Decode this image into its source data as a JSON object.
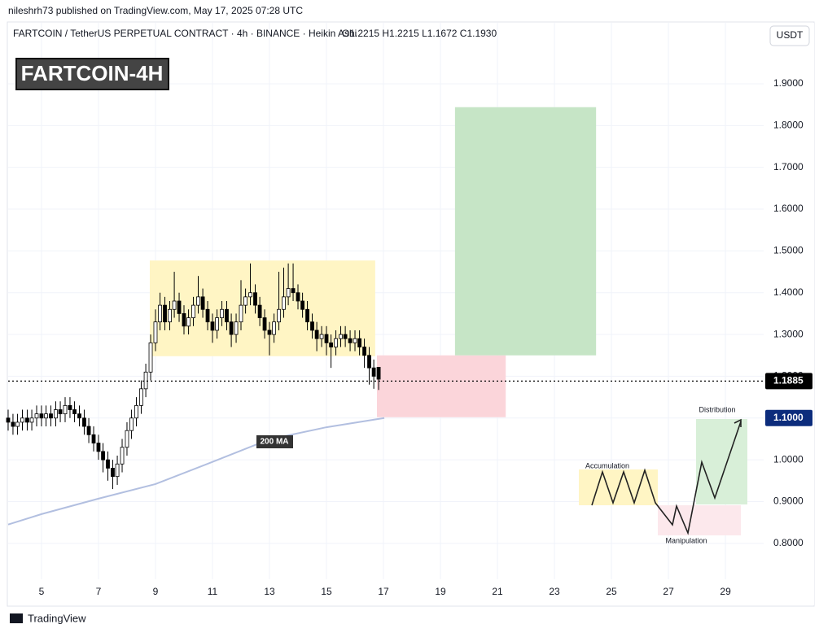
{
  "header": {
    "publisher": "nileshrh73 published on TradingView.com, May 17, 2025 07:28 UTC",
    "symbol": "FARTCOIN / TetherUS PERPETUAL CONTRACT · 4h · BINANCE · Heikin Ashi",
    "ohlc": "O1.2215  H1.2215  L1.1672  C1.1930",
    "currency": "USDT"
  },
  "footer": {
    "brand": "TradingView"
  },
  "schematic": {
    "labels": [
      "Accumulation",
      "Manipulation",
      "Distribution"
    ]
  },
  "chart_data": {
    "type": "candlestick",
    "title": "FARTCOIN-4H",
    "x": [
      3.83,
      4.0,
      4.16,
      4.33,
      4.5,
      4.66,
      4.83,
      5.0,
      5.16,
      5.33,
      5.5,
      5.66,
      5.83,
      6.0,
      6.16,
      6.33,
      6.5,
      6.66,
      6.83,
      7.0,
      7.16,
      7.33,
      7.5,
      7.66,
      7.83,
      8.0,
      8.16,
      8.33,
      8.5,
      8.66,
      8.83,
      9.0,
      9.16,
      9.33,
      9.5,
      9.66,
      9.83,
      10.0,
      10.16,
      10.33,
      10.5,
      10.66,
      10.83,
      11.0,
      11.16,
      11.33,
      11.5,
      11.66,
      11.83,
      12.0,
      12.16,
      12.33,
      12.5,
      12.66,
      12.83,
      13.0,
      13.16,
      13.33,
      13.5,
      13.66,
      13.83,
      14.0,
      14.16,
      14.33,
      14.5,
      14.66,
      14.83,
      15.0,
      15.16,
      15.33,
      15.5,
      15.66,
      15.83,
      16.0,
      16.16,
      16.33,
      16.5,
      16.66,
      16.83
    ],
    "open": [
      1.1,
      1.09,
      1.08,
      1.09,
      1.1,
      1.09,
      1.1,
      1.11,
      1.1,
      1.11,
      1.1,
      1.12,
      1.11,
      1.13,
      1.12,
      1.11,
      1.1,
      1.08,
      1.06,
      1.04,
      1.02,
      1.0,
      0.98,
      0.96,
      0.99,
      1.03,
      1.07,
      1.1,
      1.13,
      1.17,
      1.21,
      1.28,
      1.33,
      1.37,
      1.33,
      1.36,
      1.38,
      1.35,
      1.32,
      1.34,
      1.37,
      1.39,
      1.36,
      1.33,
      1.31,
      1.34,
      1.36,
      1.33,
      1.3,
      1.33,
      1.37,
      1.39,
      1.4,
      1.37,
      1.34,
      1.31,
      1.3,
      1.33,
      1.36,
      1.39,
      1.41,
      1.4,
      1.38,
      1.36,
      1.33,
      1.31,
      1.29,
      1.3,
      1.28,
      1.27,
      1.29,
      1.3,
      1.29,
      1.28,
      1.29,
      1.27,
      1.25,
      1.22,
      1.2215
    ],
    "high": [
      1.12,
      1.11,
      1.11,
      1.12,
      1.12,
      1.12,
      1.13,
      1.13,
      1.13,
      1.13,
      1.14,
      1.14,
      1.15,
      1.15,
      1.14,
      1.13,
      1.12,
      1.1,
      1.08,
      1.06,
      1.04,
      1.02,
      1.0,
      1.01,
      1.05,
      1.09,
      1.12,
      1.15,
      1.19,
      1.23,
      1.3,
      1.36,
      1.4,
      1.39,
      1.38,
      1.45,
      1.4,
      1.37,
      1.36,
      1.39,
      1.44,
      1.41,
      1.38,
      1.35,
      1.36,
      1.38,
      1.38,
      1.35,
      1.35,
      1.43,
      1.41,
      1.47,
      1.42,
      1.39,
      1.36,
      1.33,
      1.35,
      1.45,
      1.46,
      1.47,
      1.47,
      1.42,
      1.4,
      1.38,
      1.35,
      1.33,
      1.32,
      1.32,
      1.3,
      1.31,
      1.32,
      1.32,
      1.31,
      1.31,
      1.31,
      1.29,
      1.27,
      1.24,
      1.2215
    ],
    "low": [
      1.07,
      1.06,
      1.06,
      1.07,
      1.07,
      1.07,
      1.08,
      1.08,
      1.08,
      1.08,
      1.08,
      1.09,
      1.09,
      1.1,
      1.09,
      1.08,
      1.06,
      1.04,
      1.02,
      1.0,
      0.97,
      0.95,
      0.93,
      0.94,
      0.97,
      1.01,
      1.05,
      1.08,
      1.11,
      1.15,
      1.19,
      1.26,
      1.31,
      1.31,
      1.31,
      1.34,
      1.33,
      1.3,
      1.3,
      1.32,
      1.35,
      1.34,
      1.31,
      1.28,
      1.29,
      1.32,
      1.31,
      1.27,
      1.28,
      1.31,
      1.35,
      1.37,
      1.35,
      1.32,
      1.29,
      1.25,
      1.28,
      1.31,
      1.34,
      1.37,
      1.38,
      1.36,
      1.34,
      1.31,
      1.29,
      1.26,
      1.27,
      1.25,
      1.22,
      1.25,
      1.27,
      1.27,
      1.26,
      1.26,
      1.25,
      1.22,
      1.18,
      1.17,
      1.1672
    ],
    "close": [
      1.09,
      1.08,
      1.09,
      1.1,
      1.09,
      1.1,
      1.11,
      1.1,
      1.11,
      1.1,
      1.12,
      1.11,
      1.13,
      1.12,
      1.11,
      1.1,
      1.08,
      1.06,
      1.04,
      1.02,
      1.0,
      0.98,
      0.96,
      0.99,
      1.03,
      1.07,
      1.1,
      1.13,
      1.17,
      1.21,
      1.28,
      1.33,
      1.37,
      1.33,
      1.36,
      1.38,
      1.35,
      1.32,
      1.34,
      1.37,
      1.39,
      1.36,
      1.33,
      1.31,
      1.34,
      1.36,
      1.33,
      1.3,
      1.33,
      1.37,
      1.39,
      1.4,
      1.37,
      1.34,
      1.31,
      1.3,
      1.33,
      1.36,
      1.39,
      1.41,
      1.4,
      1.38,
      1.36,
      1.33,
      1.31,
      1.29,
      1.3,
      1.28,
      1.27,
      1.29,
      1.3,
      1.29,
      1.28,
      1.29,
      1.27,
      1.25,
      1.22,
      1.2,
      1.193
    ],
    "up_color": "#ffffff",
    "down_color": "#000000",
    "ma": {
      "name": "200 MA",
      "color": "#b2bfe0",
      "x": [
        3.83,
        5,
        7,
        9,
        11,
        13,
        15,
        17.03
      ],
      "values": [
        0.845,
        0.87,
        0.907,
        0.942,
        0.995,
        1.049,
        1.078,
        1.1
      ]
    },
    "boxes": [
      {
        "xlim": [
          8.8,
          16.71
        ],
        "ylim": [
          1.248,
          1.477
        ],
        "color": "#fff5c4"
      },
      {
        "xlim": [
          16.77,
          21.29
        ],
        "ylim": [
          1.102,
          1.25
        ],
        "color": "#fbd5da"
      },
      {
        "xlim": [
          19.51,
          24.46
        ],
        "ylim": [
          1.25,
          1.844
        ],
        "color": "#c6e5c6"
      }
    ],
    "price_labels": [
      {
        "value": 1.1885,
        "label": "1.1885",
        "color": "#000000",
        "style": "dotted"
      },
      {
        "value": 1.1,
        "label": "1.1000",
        "color": "#0c2c7c"
      }
    ],
    "xlim": [
      3.83,
      30.34
    ],
    "ylim": [
      0.714,
      2.046
    ],
    "xticks": [
      5,
      7,
      9,
      11,
      13,
      15,
      17,
      19,
      21,
      23,
      25,
      27,
      29
    ],
    "yticks": [
      {
        "value": 0.8,
        "label": "0.8000"
      },
      {
        "value": 0.9,
        "label": "0.9000"
      },
      {
        "value": 1.0,
        "label": "1.0000"
      },
      {
        "value": 1.1,
        "label": "1.1000"
      },
      {
        "value": 1.2,
        "label": "1.2000"
      },
      {
        "value": 1.3,
        "label": "1.3000"
      },
      {
        "value": 1.4,
        "label": "1.4000"
      },
      {
        "value": 1.5,
        "label": "1.5000"
      },
      {
        "value": 1.6,
        "label": "1.6000"
      },
      {
        "value": 1.7,
        "label": "1.7000"
      },
      {
        "value": 1.8,
        "label": "1.8000"
      },
      {
        "value": 1.9,
        "label": "1.9000"
      }
    ],
    "grid": true
  }
}
